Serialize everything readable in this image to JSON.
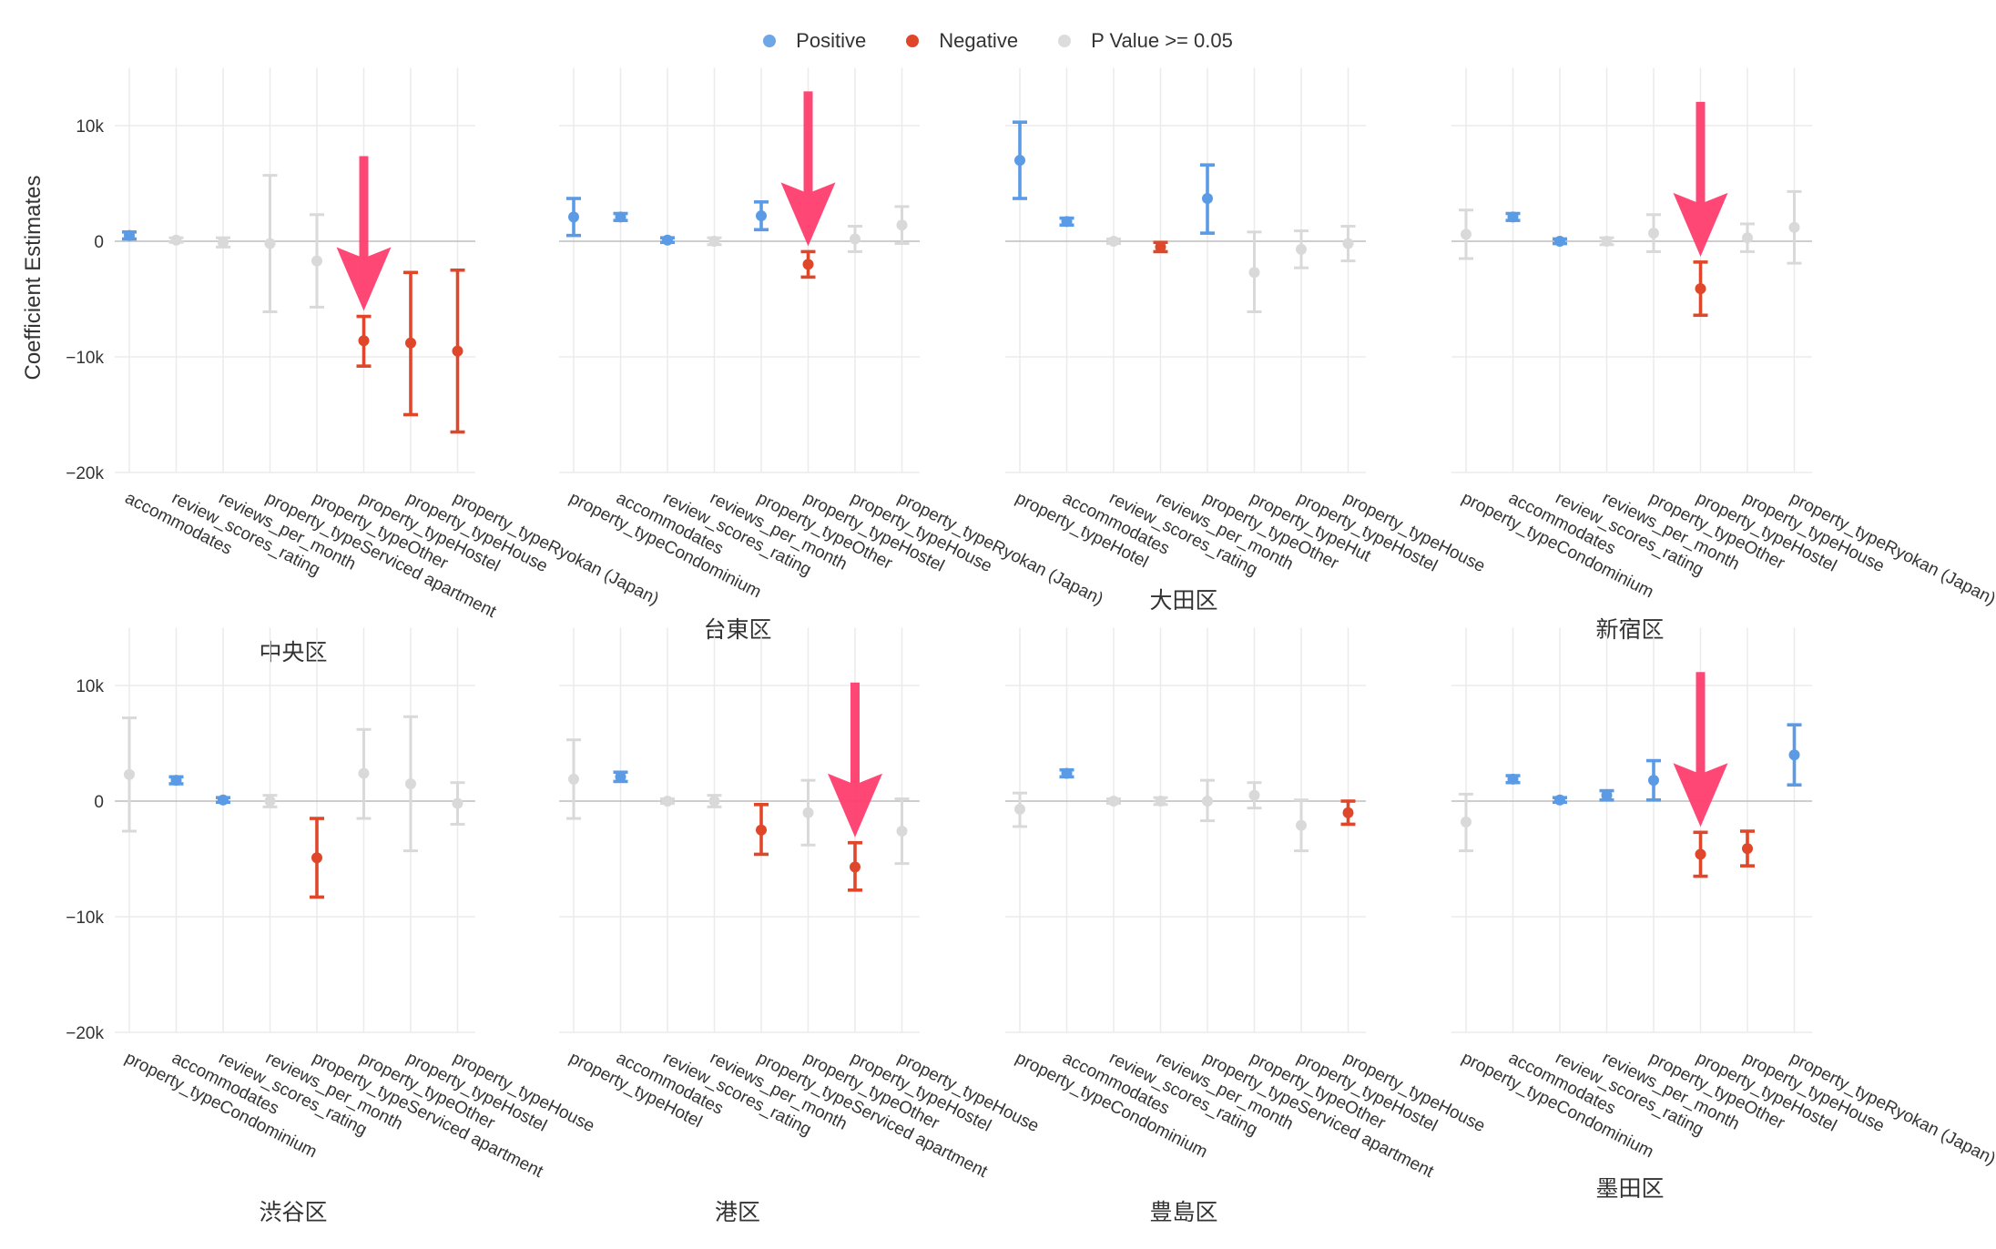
{
  "legend": {
    "positive": "Positive",
    "negative": "Negative",
    "insignificant": "P Value >= 0.05"
  },
  "colors": {
    "positive": "#5b9be6",
    "negative": "#e0472a",
    "insignificant": "#d9d9d9",
    "arrow": "#ff3d6e",
    "grid": "#ebebeb",
    "zero_line": "#bdbdbd",
    "text": "#333333"
  },
  "chart_data": {
    "type": "scatter",
    "subtype": "coefficient plot with error bars, faceted by ward",
    "ylabel": "Coefficient Estimates",
    "y_ticks": [
      {
        "value": 10000,
        "label": "10k"
      },
      {
        "value": 0,
        "label": "0"
      },
      {
        "value": -10000,
        "label": "-10k"
      },
      {
        "value": -20000,
        "label": "-20k"
      }
    ],
    "ylim": [
      -20000,
      15000
    ],
    "grid": true,
    "legend_position": "top",
    "facets": [
      {
        "title": "中央区",
        "points": [
          {
            "term": "accommodates",
            "estimate": 500,
            "low": 200,
            "high": 800,
            "sig": "positive"
          },
          {
            "term": "review_scores_rating",
            "estimate": 100,
            "low": -100,
            "high": 300,
            "sig": "insignificant"
          },
          {
            "term": "reviews_per_month",
            "estimate": -100,
            "low": -500,
            "high": 300,
            "sig": "insignificant"
          },
          {
            "term": "property_typeServiced apartment",
            "estimate": -200,
            "low": -6100,
            "high": 5700,
            "sig": "insignificant"
          },
          {
            "term": "property_typeOther",
            "estimate": -1700,
            "low": -5700,
            "high": 2300,
            "sig": "insignificant"
          },
          {
            "term": "property_typeHostel",
            "estimate": -8600,
            "low": -10800,
            "high": -6500,
            "sig": "negative",
            "arrow": true
          },
          {
            "term": "property_typeHouse",
            "estimate": -8800,
            "low": -15000,
            "high": -2700,
            "sig": "negative"
          },
          {
            "term": "property_typeRyokan (Japan)",
            "estimate": -9500,
            "low": -16500,
            "high": -2500,
            "sig": "negative"
          }
        ]
      },
      {
        "title": "台東区",
        "points": [
          {
            "term": "property_typeCondominium",
            "estimate": 2100,
            "low": 500,
            "high": 3700,
            "sig": "positive"
          },
          {
            "term": "accommodates",
            "estimate": 2100,
            "low": 1800,
            "high": 2400,
            "sig": "positive"
          },
          {
            "term": "review_scores_rating",
            "estimate": 100,
            "low": -100,
            "high": 300,
            "sig": "positive"
          },
          {
            "term": "reviews_per_month",
            "estimate": 0,
            "low": -300,
            "high": 300,
            "sig": "insignificant"
          },
          {
            "term": "property_typeOther",
            "estimate": 2200,
            "low": 1000,
            "high": 3400,
            "sig": "positive"
          },
          {
            "term": "property_typeHostel",
            "estimate": -2000,
            "low": -3100,
            "high": -900,
            "sig": "negative",
            "arrow": true
          },
          {
            "term": "property_typeHouse",
            "estimate": 200,
            "low": -900,
            "high": 1300,
            "sig": "insignificant"
          },
          {
            "term": "property_typeRyokan (Japan)",
            "estimate": 1400,
            "low": -200,
            "high": 3000,
            "sig": "insignificant"
          }
        ]
      },
      {
        "title": "大田区",
        "points": [
          {
            "term": "property_typeHotel",
            "estimate": 7000,
            "low": 3700,
            "high": 10300,
            "sig": "positive"
          },
          {
            "term": "accommodates",
            "estimate": 1700,
            "low": 1400,
            "high": 2000,
            "sig": "positive"
          },
          {
            "term": "review_scores_rating",
            "estimate": 0,
            "low": -200,
            "high": 200,
            "sig": "insignificant"
          },
          {
            "term": "reviews_per_month",
            "estimate": -500,
            "low": -900,
            "high": -100,
            "sig": "negative"
          },
          {
            "term": "property_typeOther",
            "estimate": 3700,
            "low": 700,
            "high": 6600,
            "sig": "positive"
          },
          {
            "term": "property_typeHut",
            "estimate": -2700,
            "low": -6100,
            "high": 800,
            "sig": "insignificant"
          },
          {
            "term": "property_typeHostel",
            "estimate": -700,
            "low": -2300,
            "high": 900,
            "sig": "insignificant"
          },
          {
            "term": "property_typeHouse",
            "estimate": -200,
            "low": -1700,
            "high": 1300,
            "sig": "insignificant"
          }
        ]
      },
      {
        "title": "新宿区",
        "points": [
          {
            "term": "property_typeCondominium",
            "estimate": 600,
            "low": -1500,
            "high": 2700,
            "sig": "insignificant"
          },
          {
            "term": "accommodates",
            "estimate": 2100,
            "low": 1800,
            "high": 2400,
            "sig": "positive"
          },
          {
            "term": "review_scores_rating",
            "estimate": 0,
            "low": -200,
            "high": 200,
            "sig": "positive"
          },
          {
            "term": "reviews_per_month",
            "estimate": 0,
            "low": -300,
            "high": 300,
            "sig": "insignificant"
          },
          {
            "term": "property_typeOther",
            "estimate": 700,
            "low": -900,
            "high": 2300,
            "sig": "insignificant"
          },
          {
            "term": "property_typeHostel",
            "estimate": -4100,
            "low": -6400,
            "high": -1800,
            "sig": "negative",
            "arrow": true
          },
          {
            "term": "property_typeHouse",
            "estimate": 300,
            "low": -900,
            "high": 1500,
            "sig": "insignificant"
          },
          {
            "term": "property_typeRyokan (Japan)",
            "estimate": 1200,
            "low": -1900,
            "high": 4300,
            "sig": "insignificant"
          }
        ]
      },
      {
        "title": "渋谷区",
        "points": [
          {
            "term": "property_typeCondominium",
            "estimate": 2300,
            "low": -2600,
            "high": 7200,
            "sig": "insignificant"
          },
          {
            "term": "accommodates",
            "estimate": 1800,
            "low": 1500,
            "high": 2100,
            "sig": "positive"
          },
          {
            "term": "review_scores_rating",
            "estimate": 100,
            "low": -100,
            "high": 300,
            "sig": "positive"
          },
          {
            "term": "reviews_per_month",
            "estimate": 0,
            "low": -500,
            "high": 500,
            "sig": "insignificant"
          },
          {
            "term": "property_typeServiced apartment",
            "estimate": -4900,
            "low": -8300,
            "high": -1500,
            "sig": "negative"
          },
          {
            "term": "property_typeOther",
            "estimate": 2400,
            "low": -1500,
            "high": 6200,
            "sig": "insignificant"
          },
          {
            "term": "property_typeHostel",
            "estimate": 1500,
            "low": -4300,
            "high": 7300,
            "sig": "insignificant"
          },
          {
            "term": "property_typeHouse",
            "estimate": -200,
            "low": -2000,
            "high": 1600,
            "sig": "insignificant"
          }
        ]
      },
      {
        "title": "港区",
        "points": [
          {
            "term": "property_typeHotel",
            "estimate": 1900,
            "low": -1500,
            "high": 5300,
            "sig": "insignificant"
          },
          {
            "term": "accommodates",
            "estimate": 2100,
            "low": 1700,
            "high": 2500,
            "sig": "positive"
          },
          {
            "term": "review_scores_rating",
            "estimate": 0,
            "low": -200,
            "high": 200,
            "sig": "insignificant"
          },
          {
            "term": "reviews_per_month",
            "estimate": 0,
            "low": -500,
            "high": 500,
            "sig": "insignificant"
          },
          {
            "term": "property_typeServiced apartment",
            "estimate": -2500,
            "low": -4600,
            "high": -300,
            "sig": "negative"
          },
          {
            "term": "property_typeOther",
            "estimate": -1000,
            "low": -3800,
            "high": 1800,
            "sig": "insignificant"
          },
          {
            "term": "property_typeHostel",
            "estimate": -5700,
            "low": -7700,
            "high": -3600,
            "sig": "negative",
            "arrow": true
          },
          {
            "term": "property_typeHouse",
            "estimate": -2600,
            "low": -5400,
            "high": 200,
            "sig": "insignificant"
          }
        ]
      },
      {
        "title": "豊島区",
        "points": [
          {
            "term": "property_typeCondominium",
            "estimate": -700,
            "low": -2200,
            "high": 700,
            "sig": "insignificant"
          },
          {
            "term": "accommodates",
            "estimate": 2400,
            "low": 2100,
            "high": 2700,
            "sig": "positive"
          },
          {
            "term": "review_scores_rating",
            "estimate": 0,
            "low": -200,
            "high": 200,
            "sig": "insignificant"
          },
          {
            "term": "reviews_per_month",
            "estimate": 0,
            "low": -300,
            "high": 300,
            "sig": "insignificant"
          },
          {
            "term": "property_typeServiced apartment",
            "estimate": 0,
            "low": -1700,
            "high": 1800,
            "sig": "insignificant"
          },
          {
            "term": "property_typeOther",
            "estimate": 500,
            "low": -600,
            "high": 1600,
            "sig": "insignificant"
          },
          {
            "term": "property_typeHostel",
            "estimate": -2100,
            "low": -4300,
            "high": 100,
            "sig": "insignificant"
          },
          {
            "term": "property_typeHouse",
            "estimate": -1000,
            "low": -2000,
            "high": 0,
            "sig": "negative"
          }
        ]
      },
      {
        "title": "墨田区",
        "points": [
          {
            "term": "property_typeCondominium",
            "estimate": -1800,
            "low": -4300,
            "high": 600,
            "sig": "insignificant"
          },
          {
            "term": "accommodates",
            "estimate": 1900,
            "low": 1600,
            "high": 2200,
            "sig": "positive"
          },
          {
            "term": "review_scores_rating",
            "estimate": 100,
            "low": -100,
            "high": 300,
            "sig": "positive"
          },
          {
            "term": "reviews_per_month",
            "estimate": 500,
            "low": 100,
            "high": 900,
            "sig": "positive"
          },
          {
            "term": "property_typeOther",
            "estimate": 1800,
            "low": 100,
            "high": 3500,
            "sig": "positive"
          },
          {
            "term": "property_typeHostel",
            "estimate": -4600,
            "low": -6500,
            "high": -2700,
            "sig": "negative",
            "arrow": true
          },
          {
            "term": "property_typeHouse",
            "estimate": -4100,
            "low": -5600,
            "high": -2600,
            "sig": "negative"
          },
          {
            "term": "property_typeRyokan (Japan)",
            "estimate": 4000,
            "low": 1400,
            "high": 6600,
            "sig": "positive"
          }
        ]
      }
    ]
  }
}
